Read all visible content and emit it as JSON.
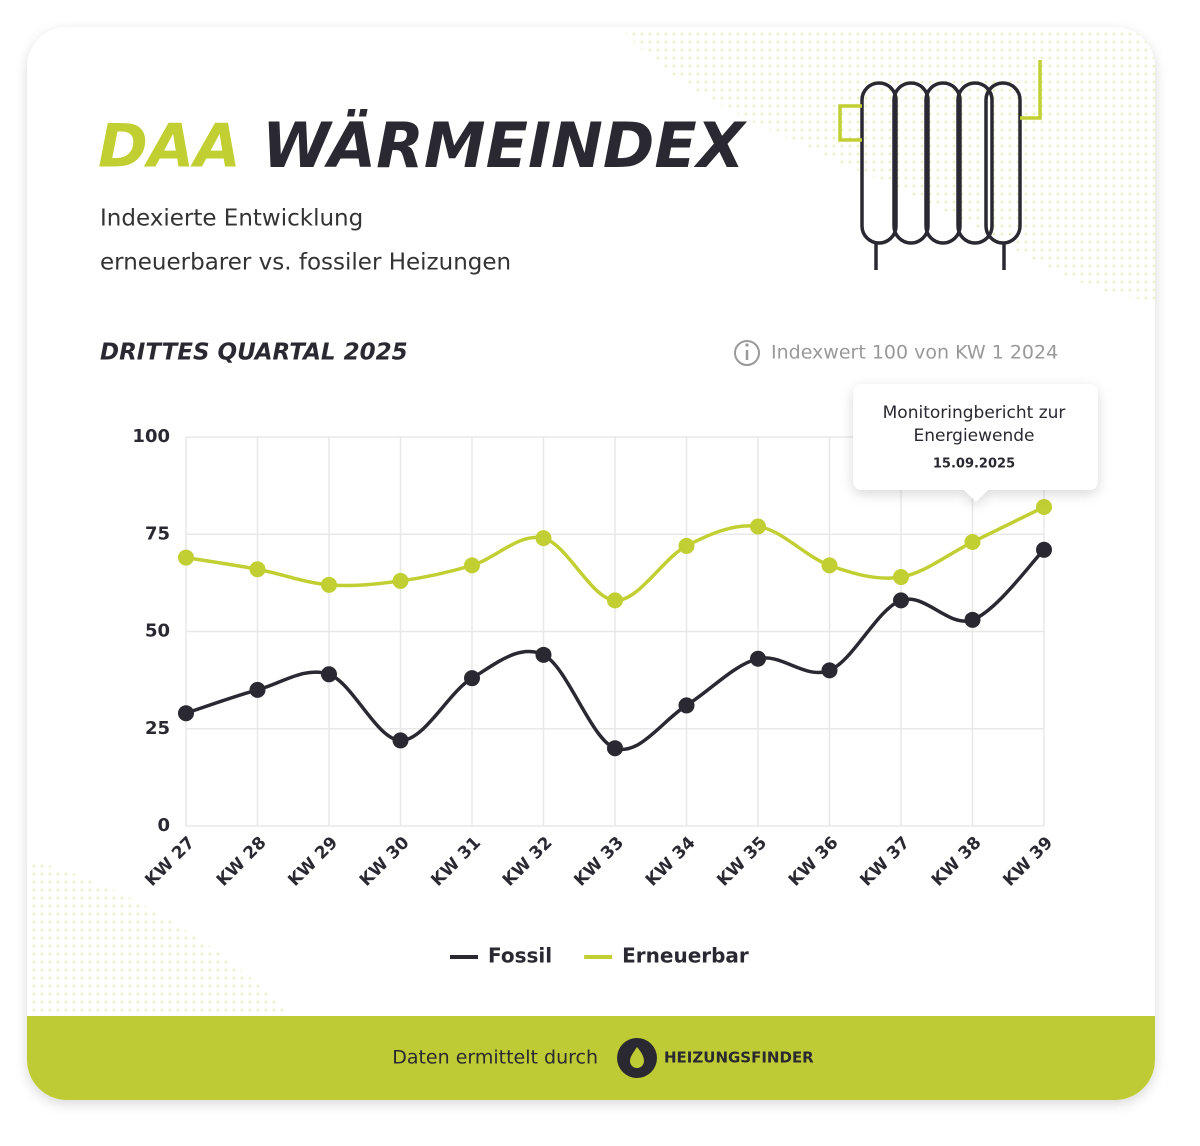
{
  "header": {
    "brand": "DAA",
    "title": "WÄRMEINDEX",
    "subtitle": [
      "Indexierte Entwicklung",
      "erneuerbarer vs. fossiler Heizungen"
    ]
  },
  "chart_data": {
    "type": "line",
    "title": "DRITTES QUARTAL 2025",
    "note": "Indexwert 100 von KW 1 2024",
    "categories": [
      "KW 27",
      "KW 28",
      "KW 29",
      "KW 30",
      "KW 31",
      "KW 32",
      "KW 33",
      "KW 34",
      "KW 35",
      "KW 36",
      "KW 37",
      "KW 38",
      "KW 39"
    ],
    "series": [
      {
        "name": "Fossil",
        "color": "#2a2830",
        "values": [
          29,
          35,
          39,
          22,
          38,
          44,
          20,
          31,
          43,
          40,
          58,
          53,
          71
        ]
      },
      {
        "name": "Erneuerbar",
        "color": "#c2cf33",
        "values": [
          69,
          66,
          62,
          63,
          67,
          74,
          58,
          72,
          77,
          67,
          64,
          73,
          82
        ]
      }
    ],
    "ylim": [
      0,
      100
    ],
    "yticks": [
      0,
      25,
      50,
      75,
      100
    ],
    "grid": true,
    "legend": "bottom",
    "annotation": {
      "text": [
        "Monitoringbericht zur",
        "Energiewende"
      ],
      "date": "15.09.2025"
    }
  },
  "footer": {
    "text": "Daten ermittelt durch",
    "brand": "HEIZUNGSFINDER"
  }
}
